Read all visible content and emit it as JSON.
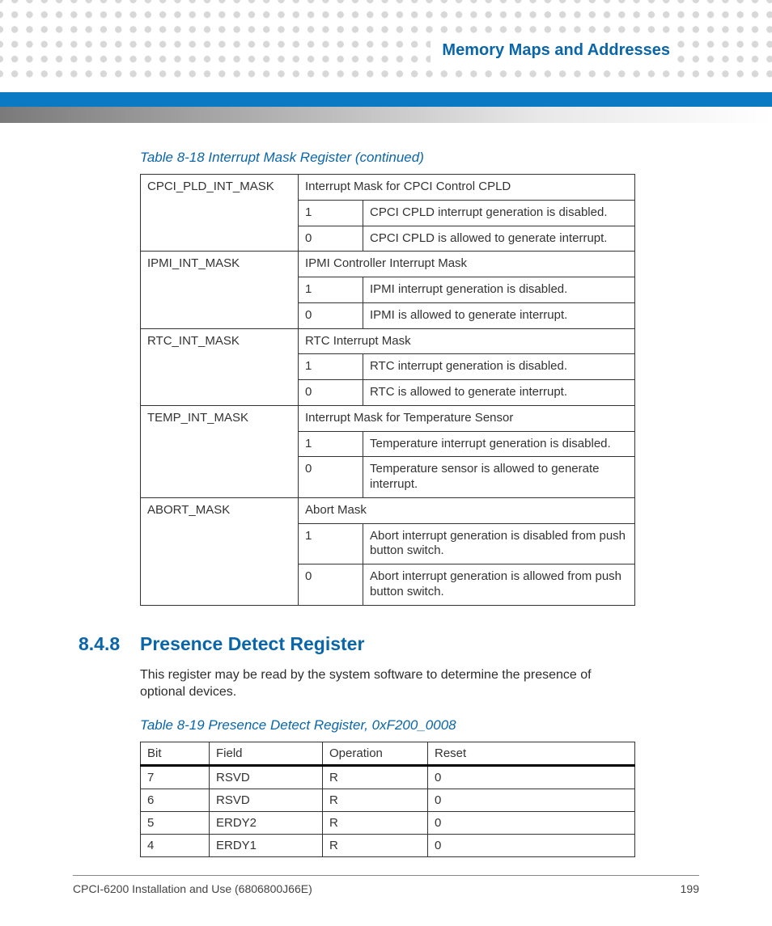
{
  "header": {
    "chapter_title": "Memory Maps and Addresses"
  },
  "colors": {
    "accent": "#0a66a8",
    "blue_bar": "#0a7ac2",
    "dot": "#d8d8d8",
    "gradient_from": "#7a7a7a",
    "gradient_to": "#ffffff",
    "text": "#333333"
  },
  "table1": {
    "caption": "Table 8-18 Interrupt Mask Register (continued)",
    "groups": [
      {
        "name": "CPCI_PLD_INT_MASK",
        "title": "Interrupt Mask for CPCI Control CPLD",
        "rows": [
          {
            "v": "1",
            "d": "CPCI CPLD interrupt generation is disabled."
          },
          {
            "v": "0",
            "d": "CPCI CPLD is allowed to generate interrupt."
          }
        ]
      },
      {
        "name": "IPMI_INT_MASK",
        "title": "IPMI Controller Interrupt Mask",
        "rows": [
          {
            "v": "1",
            "d": "IPMI interrupt generation is disabled."
          },
          {
            "v": "0",
            "d": "IPMI is allowed to generate interrupt."
          }
        ]
      },
      {
        "name": "RTC_INT_MASK",
        "title": "RTC Interrupt Mask",
        "rows": [
          {
            "v": "1",
            "d": "RTC interrupt generation is disabled."
          },
          {
            "v": "0",
            "d": "RTC is allowed to generate interrupt."
          }
        ]
      },
      {
        "name": "TEMP_INT_MASK",
        "title": "Interrupt Mask for Temperature Sensor",
        "rows": [
          {
            "v": "1",
            "d": "Temperature interrupt generation is disabled."
          },
          {
            "v": "0",
            "d": "Temperature sensor is allowed to generate interrupt."
          }
        ]
      },
      {
        "name": "ABORT_MASK",
        "title": "Abort Mask",
        "rows": [
          {
            "v": "1",
            "d": "Abort interrupt generation is disabled from push button switch."
          },
          {
            "v": "0",
            "d": "Abort interrupt generation is allowed from push button switch."
          }
        ]
      }
    ]
  },
  "section": {
    "number": "8.4.8",
    "title": "Presence Detect Register",
    "body": "This register may be read by the system software to determine the presence of optional devices."
  },
  "table2": {
    "caption": "Table 8-19 Presence Detect Register, 0xF200_0008",
    "headers": {
      "bit": "Bit",
      "field": "Field",
      "op": "Operation",
      "reset": "Reset"
    },
    "rows": [
      {
        "bit": "7",
        "field": "RSVD",
        "op": "R",
        "reset": "0"
      },
      {
        "bit": "6",
        "field": "RSVD",
        "op": "R",
        "reset": "0"
      },
      {
        "bit": "5",
        "field": "ERDY2",
        "op": "R",
        "reset": "0"
      },
      {
        "bit": "4",
        "field": "ERDY1",
        "op": "R",
        "reset": "0"
      }
    ]
  },
  "footer": {
    "doc": "CPCI-6200 Installation and Use (6806800J66E)",
    "page": "199"
  }
}
